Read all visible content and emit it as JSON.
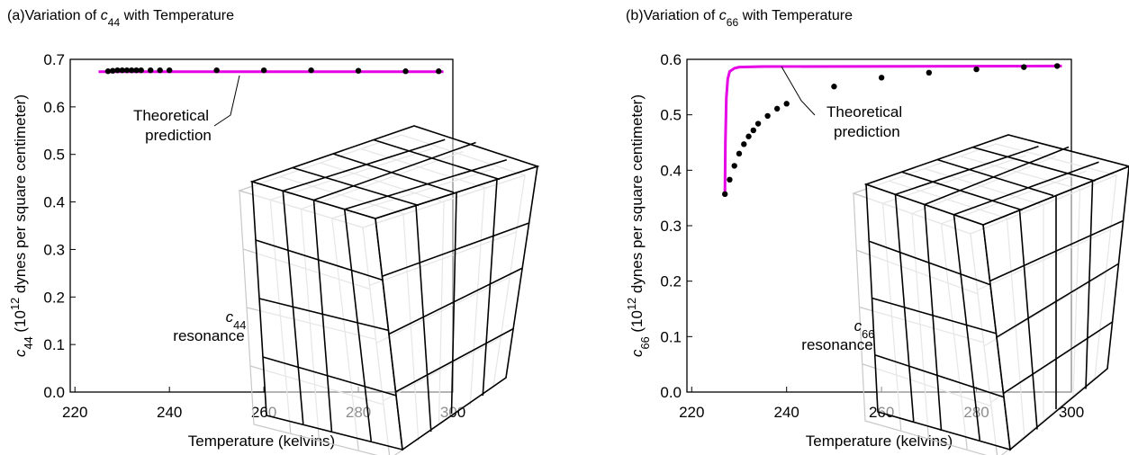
{
  "chart_data": [
    {
      "type": "scatter",
      "panel": "(a)",
      "title": [
        "Variation of ",
        "c",
        "44",
        " with Temperature"
      ],
      "xlabel": "Temperature (kelvins)",
      "ylabel": [
        "c",
        "44",
        " (10",
        "12",
        " dynes per square centimeter)"
      ],
      "annotation": [
        "Theoretical",
        "prediction"
      ],
      "resonance_label": [
        "c",
        "44",
        "resonance"
      ],
      "xlim": [
        219,
        300
      ],
      "ylim": [
        0,
        0.7
      ],
      "xticks": [
        220,
        240,
        260,
        280,
        300
      ],
      "yticks": [
        {
          "value": 0,
          "label": "0.0"
        },
        0.1,
        0.2,
        0.3,
        0.4,
        0.5,
        0.6,
        0.7
      ],
      "series": [
        {
          "kind": "line",
          "color": "#e600e6",
          "x": [
            225,
            298
          ],
          "values": [
            0.674,
            0.674
          ]
        },
        {
          "kind": "points",
          "color": "#000000",
          "x": [
            227,
            228,
            229,
            230,
            231,
            232,
            233,
            234,
            236,
            238,
            240,
            250,
            260,
            270,
            280,
            290,
            297
          ],
          "values": [
            0.675,
            0.676,
            0.677,
            0.677,
            0.677,
            0.677,
            0.677,
            0.677,
            0.677,
            0.677,
            0.677,
            0.677,
            0.677,
            0.677,
            0.676,
            0.675,
            0.675
          ]
        }
      ]
    },
    {
      "type": "scatter",
      "panel": "(b)",
      "title": [
        "Variation of ",
        "c",
        "66",
        " with Temperature"
      ],
      "xlabel": "Temperature (kelvins)",
      "ylabel": [
        "c",
        "66",
        " (10",
        "12",
        " dynes per square centimeter)"
      ],
      "annotation": [
        "Theoretical",
        "prediction"
      ],
      "resonance_label": [
        "c",
        "66",
        "resonance"
      ],
      "xlim": [
        219,
        300
      ],
      "ylim": [
        0,
        0.6
      ],
      "xticks": [
        220,
        240,
        260,
        280,
        300
      ],
      "yticks": [
        {
          "value": 0,
          "label": "0.0"
        },
        0.1,
        0.2,
        0.3,
        0.4,
        0.5,
        0.6
      ],
      "series": [
        {
          "kind": "line",
          "color": "#e600e6",
          "x": [
            227,
            227.1,
            227.3,
            227.6,
            228,
            229,
            230,
            235,
            298
          ],
          "values": [
            0.357,
            0.45,
            0.53,
            0.565,
            0.578,
            0.584,
            0.586,
            0.587,
            0.588
          ]
        },
        {
          "kind": "points",
          "color": "#000000",
          "x": [
            227,
            228,
            229,
            230,
            231,
            232,
            233,
            234,
            236,
            238,
            240,
            250,
            260,
            270,
            280,
            290,
            297
          ],
          "values": [
            0.357,
            0.383,
            0.408,
            0.43,
            0.447,
            0.461,
            0.472,
            0.484,
            0.498,
            0.511,
            0.52,
            0.551,
            0.567,
            0.576,
            0.582,
            0.586,
            0.588
          ]
        }
      ]
    }
  ]
}
